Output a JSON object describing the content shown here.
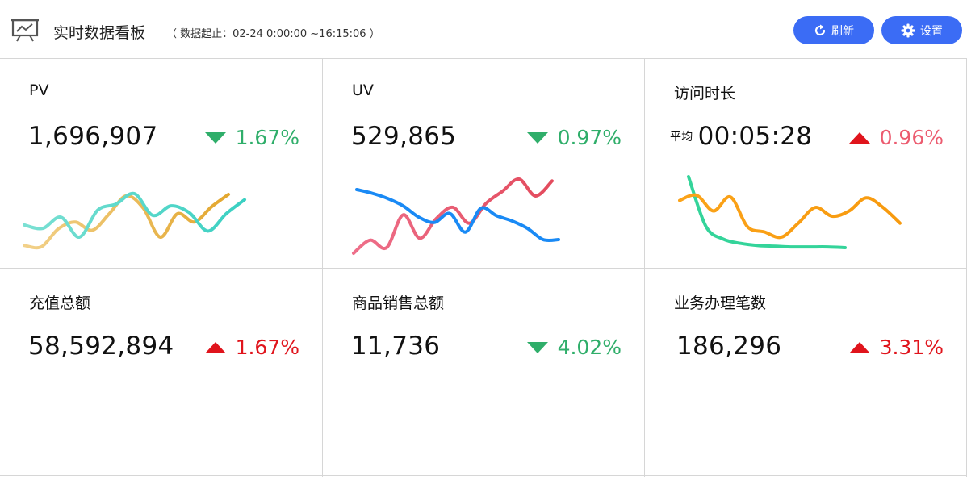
{
  "header": {
    "logo_icon": "presentation-chart-icon",
    "title": "实时数据看板",
    "range": "（ 数据起止：02-24 0:00:00 ~16:15:06 ）",
    "refresh_label": "刷新",
    "settings_label": "设置",
    "button_color": "#3b6cf5"
  },
  "cards": [
    {
      "title": "PV",
      "value": "1,696,907",
      "prefix": "",
      "change": "1.67%",
      "direction": "down",
      "color": "#2fae6a",
      "line_colors": [
        "#f2d18a",
        "#e3a72f"
      ],
      "chart_data": {
        "type": "line",
        "values": [
          12,
          11,
          24,
          29,
          23,
          35,
          48,
          39,
          18,
          35,
          29,
          40,
          49
        ]
      }
    },
    {
      "title": "UV",
      "value": "529,865",
      "prefix": "",
      "change": "0.97%",
      "direction": "down",
      "color": "#2fae6a",
      "line_colors": [
        "#ee6f8a",
        "#e34b5d"
      ],
      "chart_data": {
        "type": "line",
        "values": [
          5,
          19,
          11,
          46,
          21,
          42,
          54,
          37,
          58,
          71,
          84,
          66,
          82
        ]
      }
    },
    {
      "title": "访问时长",
      "value": "00:05:28",
      "prefix": "平均",
      "change": "0.96%",
      "direction": "up",
      "color": "#ec5c70",
      "line_colors": [
        "#34d49a",
        "#34d49a"
      ],
      "chart_data": {
        "type": "line",
        "values": [
          100,
          30,
          12,
          6,
          3,
          2,
          1,
          1,
          1,
          0
        ]
      }
    },
    {
      "title": "充值总额",
      "value": "58,592,894",
      "prefix": "",
      "change": "1.67%",
      "direction": "up",
      "color": "#e0141c",
      "line_colors": [
        "#7be0d3",
        "#3ad0c2"
      ],
      "chart_data": {
        "type": "line",
        "values": [
          16,
          12,
          25,
          2,
          33,
          40,
          52,
          27,
          38,
          30,
          9,
          29,
          45
        ]
      }
    },
    {
      "title": "商品销售总额",
      "value": "11,736",
      "prefix": "",
      "change": "4.02%",
      "direction": "down",
      "color": "#2fae6a",
      "line_colors": [
        "#1a8af5",
        "#1a8af5"
      ],
      "chart_data": {
        "type": "line",
        "values": [
          67,
          62,
          55,
          45,
          30,
          23,
          35,
          10,
          42,
          32,
          25,
          15,
          0,
          0
        ]
      }
    },
    {
      "title": "业务办理笔数",
      "value": "186,296",
      "prefix": "",
      "change": "3.31%",
      "direction": "up",
      "color": "#e0141c",
      "line_colors": [
        "#fba319",
        "#f79a0e"
      ],
      "chart_data": {
        "type": "line",
        "values": [
          42,
          48,
          30,
          46,
          12,
          6,
          0,
          16,
          34,
          24,
          30,
          45,
          34,
          16
        ]
      }
    }
  ]
}
